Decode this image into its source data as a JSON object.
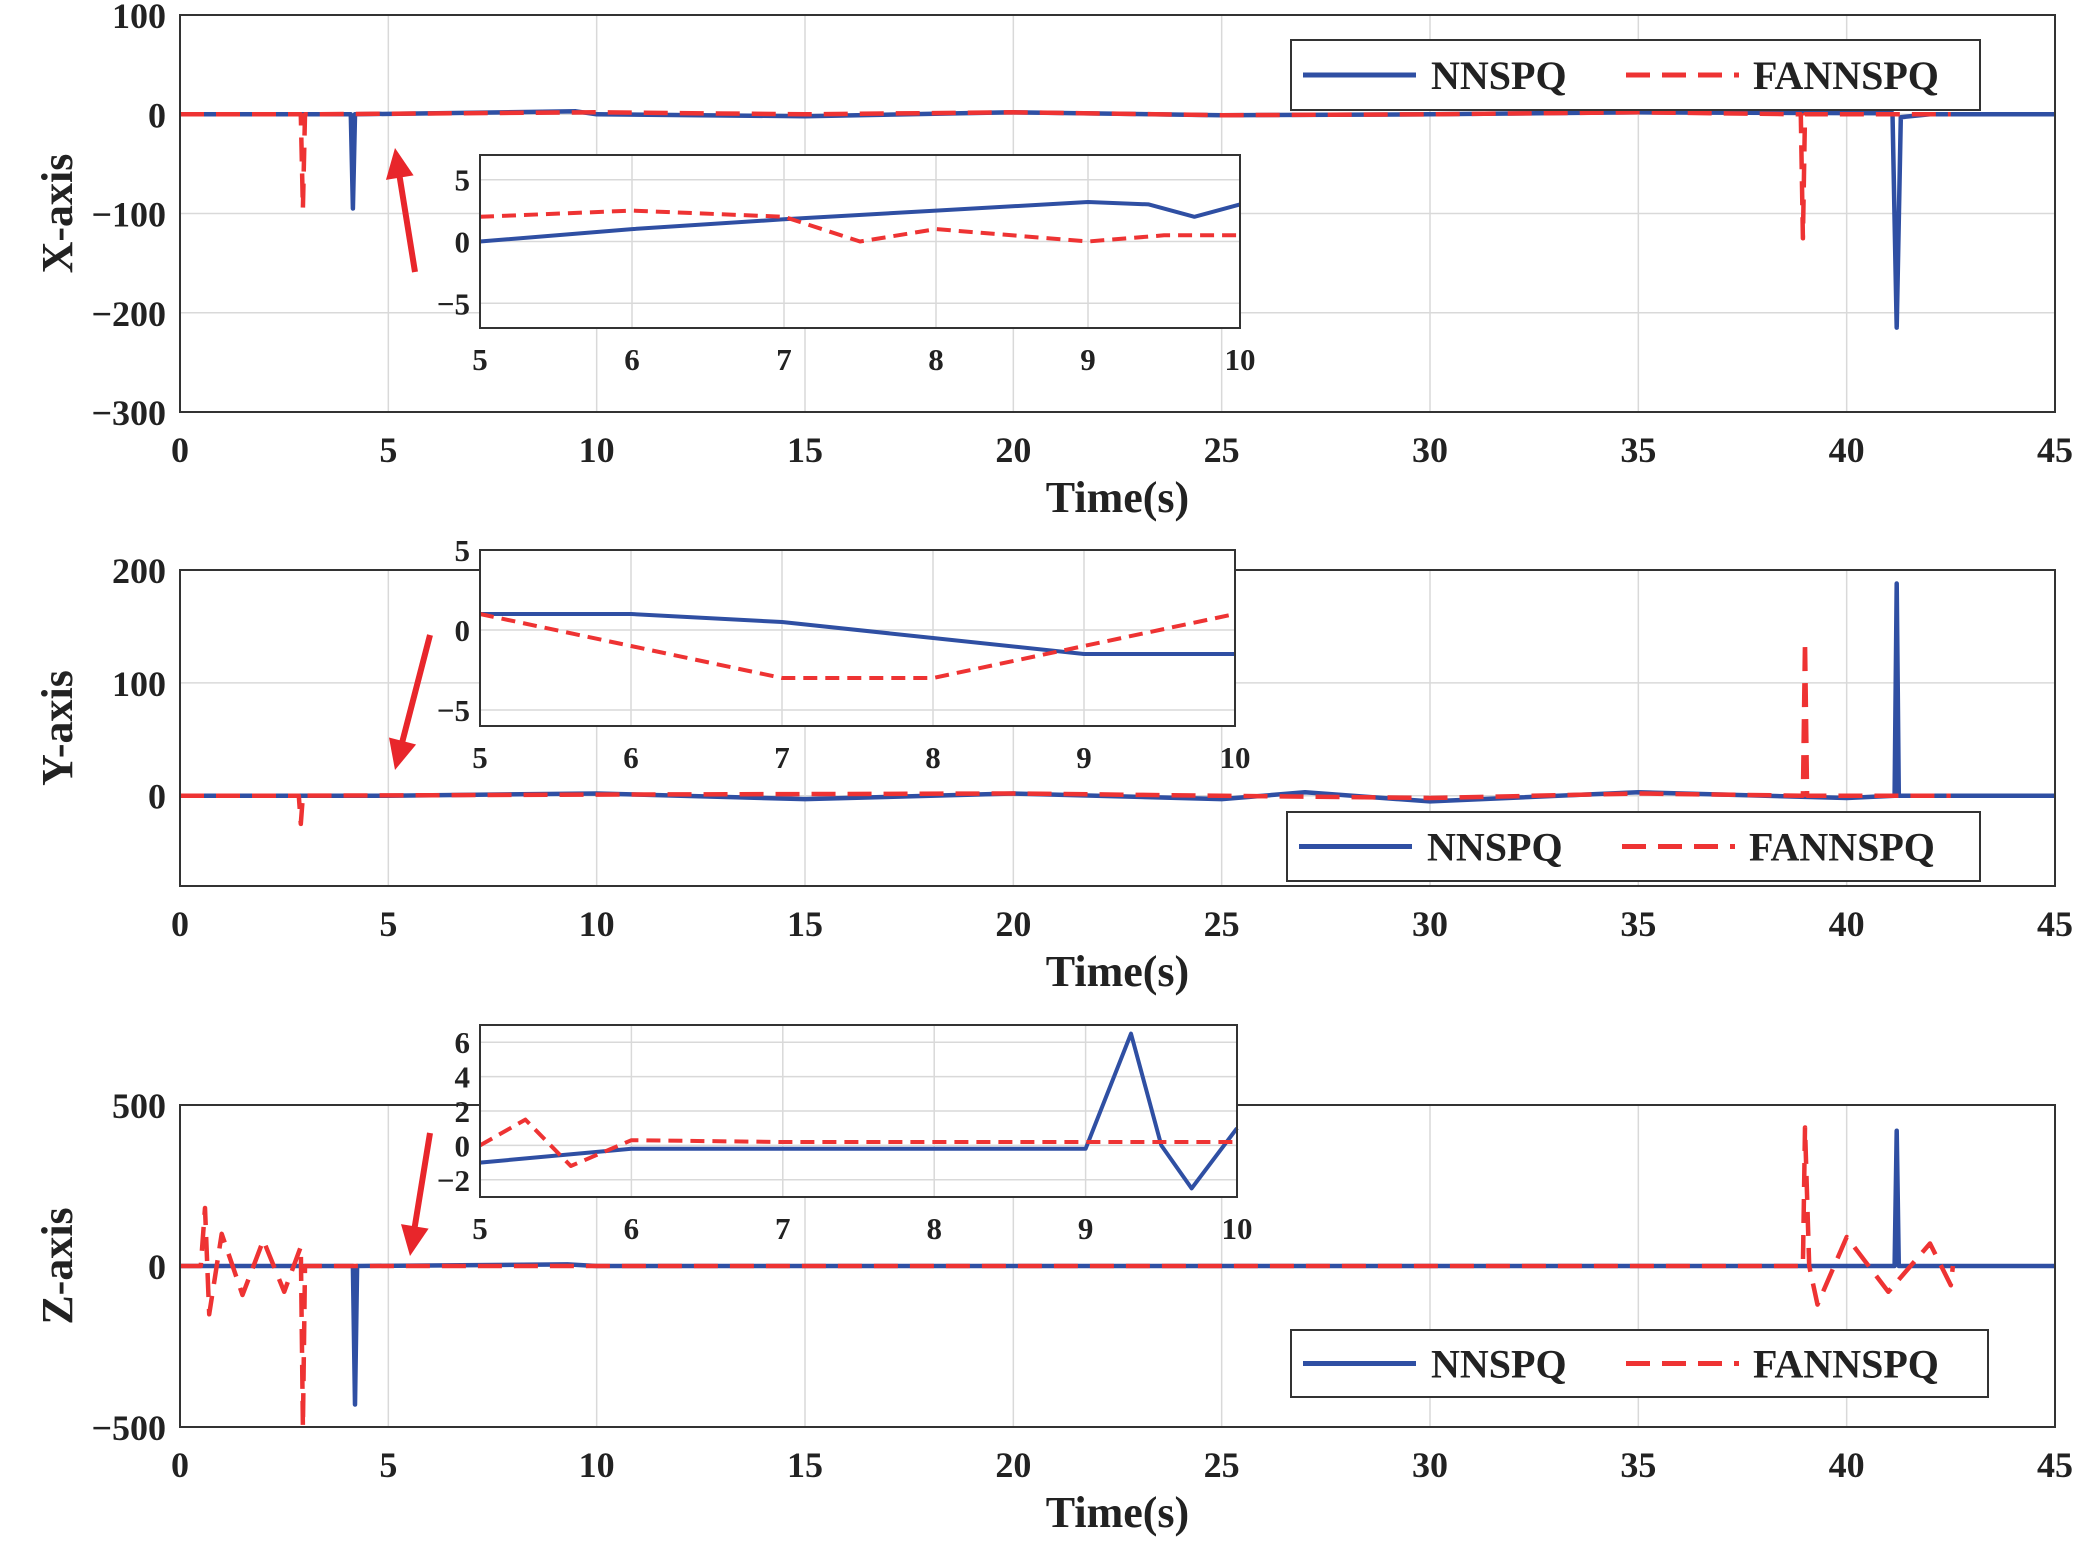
{
  "colors": {
    "nnspq": "#2f4fa3",
    "fannspq": "#ee3333",
    "arrow": "#e8262b",
    "grid": "#d9d9d9",
    "axis": "#333333"
  },
  "chart_data": [
    {
      "type": "line",
      "id": "x",
      "ylabel": "X-axis",
      "xlabel": "Time(s)",
      "xlim": [
        0,
        45
      ],
      "ylim": [
        -300,
        100
      ],
      "xticks": [
        "0",
        "5",
        "10",
        "15",
        "20",
        "25",
        "30",
        "35",
        "40",
        "45"
      ],
      "yticks": [
        {
          "v": 100,
          "t": "100"
        },
        {
          "v": 0,
          "t": "0"
        },
        {
          "v": -100,
          "t": "−100"
        },
        {
          "v": -200,
          "t": "−200"
        },
        {
          "v": -300,
          "t": "−300"
        }
      ],
      "legend": {
        "position": "top-right",
        "labels": [
          "NNSPQ",
          "FANNSPQ"
        ]
      },
      "series": [
        {
          "name": "NNSPQ",
          "style": "solid",
          "points": [
            [
              0,
              0
            ],
            [
              4.1,
              0
            ],
            [
              4.15,
              -95
            ],
            [
              4.2,
              0
            ],
            [
              9.5,
              3
            ],
            [
              10,
              0
            ],
            [
              15,
              -2
            ],
            [
              20,
              2
            ],
            [
              25,
              -1
            ],
            [
              30,
              0
            ],
            [
              35,
              2
            ],
            [
              41.1,
              1
            ],
            [
              41.2,
              -215
            ],
            [
              41.3,
              -3
            ],
            [
              42,
              0
            ],
            [
              45,
              0
            ]
          ]
        },
        {
          "name": "FANNSPQ",
          "style": "dashed",
          "points": [
            [
              0,
              0
            ],
            [
              2.9,
              0
            ],
            [
              2.95,
              -95
            ],
            [
              3.0,
              0
            ],
            [
              10,
              2
            ],
            [
              15,
              0
            ],
            [
              20,
              2
            ],
            [
              25,
              -1
            ],
            [
              30,
              0
            ],
            [
              35,
              2
            ],
            [
              38.9,
              0
            ],
            [
              38.95,
              -125
            ],
            [
              39.0,
              0
            ],
            [
              42.5,
              0
            ]
          ]
        }
      ],
      "inset": {
        "xlim": [
          5,
          10
        ],
        "ylim": [
          -7,
          7
        ],
        "xticks": [
          "5",
          "6",
          "7",
          "8",
          "9",
          "10"
        ],
        "yticks": [
          {
            "v": 5,
            "t": "5"
          },
          {
            "v": 0,
            "t": "0"
          },
          {
            "v": -5,
            "t": "−5"
          }
        ],
        "series": [
          {
            "name": "NNSPQ",
            "points": [
              [
                5,
                0
              ],
              [
                6,
                1
              ],
              [
                7,
                1.8
              ],
              [
                8,
                2.5
              ],
              [
                9,
                3.2
              ],
              [
                9.4,
                3
              ],
              [
                9.7,
                2
              ],
              [
                10,
                3
              ]
            ]
          },
          {
            "name": "FANNSPQ",
            "points": [
              [
                5,
                2
              ],
              [
                6,
                2.5
              ],
              [
                7,
                2
              ],
              [
                7.5,
                0
              ],
              [
                8,
                1
              ],
              [
                9,
                0
              ],
              [
                9.5,
                0.5
              ],
              [
                10,
                0.5
              ]
            ]
          }
        ]
      }
    },
    {
      "type": "line",
      "id": "y",
      "ylabel": "Y-axis",
      "xlabel": "Time(s)",
      "xlim": [
        0,
        45
      ],
      "ylim": [
        -80,
        200
      ],
      "xticks": [
        "0",
        "5",
        "10",
        "15",
        "20",
        "25",
        "30",
        "35",
        "40",
        "45"
      ],
      "yticks": [
        {
          "v": 200,
          "t": "200"
        },
        {
          "v": 100,
          "t": "100"
        },
        {
          "v": 0,
          "t": "0"
        }
      ],
      "legend": {
        "position": "bottom-right",
        "labels": [
          "NNSPQ",
          "FANNSPQ"
        ]
      },
      "series": [
        {
          "name": "NNSPQ",
          "style": "solid",
          "points": [
            [
              0,
              0
            ],
            [
              5,
              0
            ],
            [
              10,
              2
            ],
            [
              15,
              -3
            ],
            [
              20,
              2
            ],
            [
              25,
              -3
            ],
            [
              27,
              3
            ],
            [
              30,
              -5
            ],
            [
              35,
              3
            ],
            [
              40,
              -2
            ],
            [
              41.15,
              0
            ],
            [
              41.2,
              188
            ],
            [
              41.25,
              0
            ],
            [
              45,
              0
            ]
          ]
        },
        {
          "name": "FANNSPQ",
          "style": "dashed",
          "points": [
            [
              0,
              0
            ],
            [
              2.85,
              0
            ],
            [
              2.9,
              -25
            ],
            [
              2.95,
              0
            ],
            [
              10,
              1
            ],
            [
              20,
              2
            ],
            [
              30,
              -2
            ],
            [
              35,
              2
            ],
            [
              38.95,
              0
            ],
            [
              39.0,
              137
            ],
            [
              39.05,
              0
            ],
            [
              42.5,
              0
            ]
          ]
        }
      ],
      "inset": {
        "xlim": [
          5,
          10
        ],
        "ylim": [
          -6,
          5
        ],
        "xticks": [
          "5",
          "6",
          "7",
          "8",
          "9",
          "10"
        ],
        "yticks": [
          {
            "v": 5,
            "t": "5"
          },
          {
            "v": 0,
            "t": "0"
          },
          {
            "v": -5,
            "t": "−5"
          }
        ],
        "series": [
          {
            "name": "NNSPQ",
            "points": [
              [
                5,
                1
              ],
              [
                6,
                1
              ],
              [
                7,
                0.5
              ],
              [
                8,
                -0.5
              ],
              [
                9,
                -1.5
              ],
              [
                10,
                -1.5
              ]
            ]
          },
          {
            "name": "FANNSPQ",
            "points": [
              [
                5,
                1
              ],
              [
                6,
                -1
              ],
              [
                7,
                -3
              ],
              [
                8,
                -3
              ],
              [
                9,
                -1
              ],
              [
                10,
                1
              ]
            ]
          }
        ]
      }
    },
    {
      "type": "line",
      "id": "z",
      "ylabel": "Z-axis",
      "xlabel": "Time(s)",
      "xlim": [
        0,
        45
      ],
      "ylim": [
        -500,
        500
      ],
      "xticks": [
        "0",
        "5",
        "10",
        "15",
        "20",
        "25",
        "30",
        "35",
        "40",
        "45"
      ],
      "yticks": [
        {
          "v": 500,
          "t": "500"
        },
        {
          "v": 0,
          "t": "0"
        },
        {
          "v": -500,
          "t": "−500"
        }
      ],
      "legend": {
        "position": "bottom-right",
        "labels": [
          "NNSPQ",
          "FANNSPQ"
        ]
      },
      "series": [
        {
          "name": "NNSPQ",
          "style": "solid",
          "points": [
            [
              0,
              0
            ],
            [
              4.15,
              0
            ],
            [
              4.2,
              -430
            ],
            [
              4.25,
              0
            ],
            [
              9.3,
              5
            ],
            [
              10,
              0
            ],
            [
              41.15,
              0
            ],
            [
              41.2,
              420
            ],
            [
              41.25,
              0
            ],
            [
              45,
              0
            ]
          ]
        },
        {
          "name": "FANNSPQ",
          "style": "dashed",
          "points": [
            [
              0,
              0
            ],
            [
              0.5,
              0
            ],
            [
              0.6,
              180
            ],
            [
              0.7,
              -150
            ],
            [
              1,
              100
            ],
            [
              1.5,
              -90
            ],
            [
              2,
              80
            ],
            [
              2.5,
              -80
            ],
            [
              2.9,
              60
            ],
            [
              2.95,
              -500
            ],
            [
              3.0,
              0
            ],
            [
              38.95,
              0
            ],
            [
              39.0,
              430
            ],
            [
              39.1,
              0
            ],
            [
              39.3,
              -120
            ],
            [
              40,
              90
            ],
            [
              41,
              -80
            ],
            [
              42,
              70
            ],
            [
              42.5,
              -60
            ],
            [
              42.55,
              0
            ]
          ]
        }
      ],
      "inset": {
        "xlim": [
          5,
          10
        ],
        "ylim": [
          -3,
          7
        ],
        "xticks": [
          "5",
          "6",
          "7",
          "8",
          "9",
          "10"
        ],
        "yticks": [
          {
            "v": 6,
            "t": "6"
          },
          {
            "v": 4,
            "t": "4"
          },
          {
            "v": 2,
            "t": "2"
          },
          {
            "v": 0,
            "t": "0"
          },
          {
            "v": -2,
            "t": "−2"
          }
        ],
        "series": [
          {
            "name": "NNSPQ",
            "points": [
              [
                5,
                -1
              ],
              [
                6,
                -0.2
              ],
              [
                7,
                -0.2
              ],
              [
                8,
                -0.2
              ],
              [
                9,
                -0.2
              ],
              [
                9.3,
                6.5
              ],
              [
                9.5,
                0
              ],
              [
                9.7,
                -2.5
              ],
              [
                10,
                1
              ]
            ]
          },
          {
            "name": "FANNSPQ",
            "points": [
              [
                5,
                0
              ],
              [
                5.3,
                1.5
              ],
              [
                5.6,
                -1.2
              ],
              [
                6,
                0.3
              ],
              [
                7,
                0.2
              ],
              [
                8,
                0.2
              ],
              [
                9,
                0.2
              ],
              [
                10,
                0.2
              ]
            ]
          }
        ]
      }
    }
  ]
}
